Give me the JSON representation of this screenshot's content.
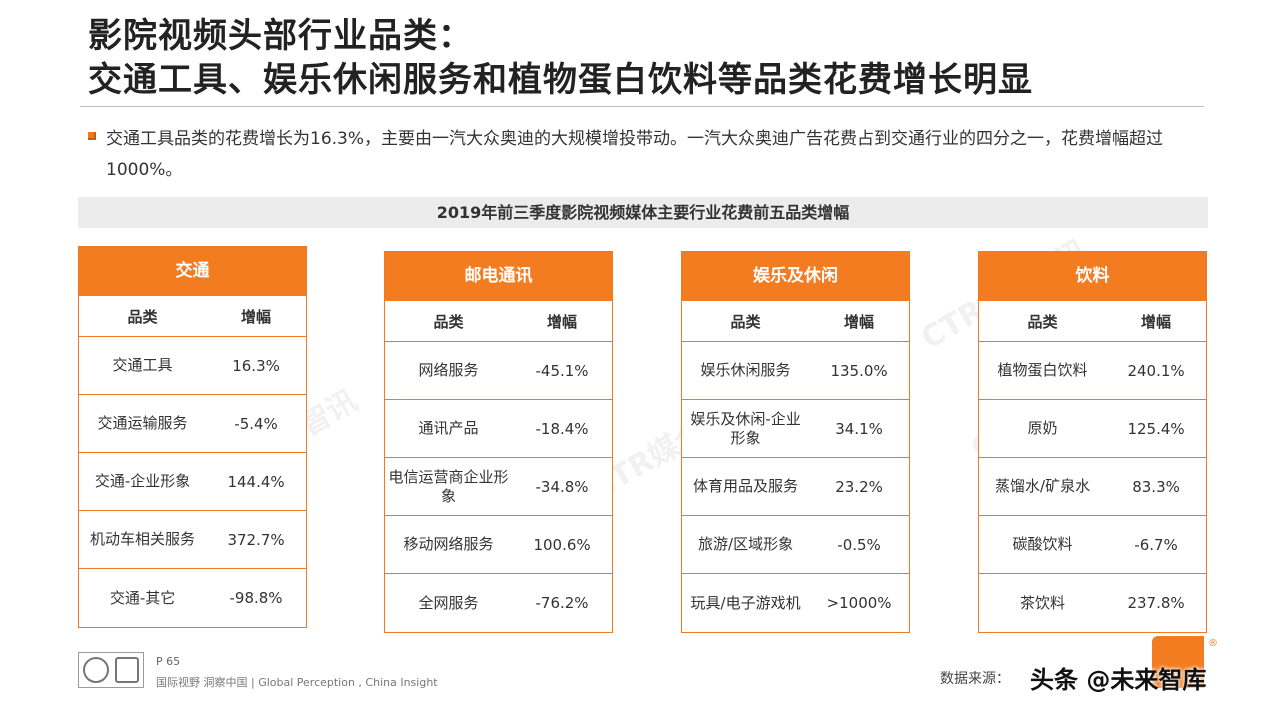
{
  "title": {
    "line1": "影院视频头部行业品类：",
    "line2": "交通工具、娱乐休闲服务和植物蛋白饮料等品类花费增长明显"
  },
  "bullet": "交通工具品类的花费增长为16.3%，主要由一汽大众奥迪的大规模增投带动。一汽大众奥迪广告花费占到交通行业的四分之一，花费增幅超过1000%。",
  "subtitle": "2019年前三季度影院视频媒体主要行业花费前五品类增幅",
  "col_headers": {
    "category": "品类",
    "growth": "增幅"
  },
  "panels": [
    {
      "title": "交通",
      "rows": [
        {
          "category": "交通工具",
          "growth": "16.3%"
        },
        {
          "category": "交通运输服务",
          "growth": "-5.4%"
        },
        {
          "category": "交通-企业形象",
          "growth": "144.4%"
        },
        {
          "category": "机动车相关服务",
          "growth": "372.7%"
        },
        {
          "category": "交通-其它",
          "growth": "-98.8%"
        }
      ]
    },
    {
      "title": "邮电通讯",
      "rows": [
        {
          "category": "网络服务",
          "growth": "-45.1%"
        },
        {
          "category": "通讯产品",
          "growth": "-18.4%"
        },
        {
          "category": "电信运营商企业形象",
          "growth": "-34.8%"
        },
        {
          "category": "移动网络服务",
          "growth": "100.6%"
        },
        {
          "category": "全网服务",
          "growth": "-76.2%"
        }
      ]
    },
    {
      "title": "娱乐及休闲",
      "rows": [
        {
          "category": "娱乐休闲服务",
          "growth": "135.0%"
        },
        {
          "category": "娱乐及休闲-企业形象",
          "growth": "34.1%"
        },
        {
          "category": "体育用品及服务",
          "growth": "23.2%"
        },
        {
          "category": "旅游/区域形象",
          "growth": "-0.5%"
        },
        {
          "category": "玩具/电子游戏机",
          "growth": ">1000%"
        }
      ]
    },
    {
      "title": "饮料",
      "rows": [
        {
          "category": "植物蛋白饮料",
          "growth": "240.1%"
        },
        {
          "category": "原奶",
          "growth": "125.4%"
        },
        {
          "category": "蒸馏水/矿泉水",
          "growth": "83.3%"
        },
        {
          "category": "碳酸饮料",
          "growth": "-6.7%"
        },
        {
          "category": "茶饮料",
          "growth": "237.8%"
        }
      ]
    }
  ],
  "watermark_text": "CTR媒介智讯",
  "footer": {
    "page": "P 65",
    "slogan": "国际视野 洞察中国 | Global Perception , China Insight",
    "source": "数据来源：",
    "stamp": "头条 @未来智库",
    "reg": "®"
  },
  "colors": {
    "accent": "#f47c20",
    "subtitle_bg": "#ececec"
  }
}
